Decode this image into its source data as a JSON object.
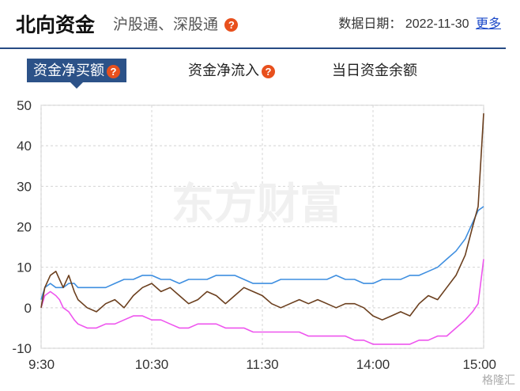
{
  "header": {
    "title": "北向资金",
    "subtitle": "沪股通、深股通",
    "date_label": "数据日期：",
    "date_value": "2022-11-30",
    "more_label": "更多"
  },
  "tabs": [
    {
      "label": "资金净买额",
      "active": true,
      "help": true
    },
    {
      "label": "资金净流入",
      "active": false,
      "help": true
    },
    {
      "label": "当日资金余额",
      "active": false,
      "help": false
    }
  ],
  "watermark": "东方财富",
  "corner_watermark": "格隆汇",
  "colors": {
    "accent": "#2c5288",
    "north_total": "#6b3f1e",
    "shanghai": "#3f8fe0",
    "shenzhen": "#ee55ee"
  },
  "chart_data": {
    "type": "line",
    "x_ticks": [
      "9:30",
      "10:30",
      "11:30",
      "14:00",
      "15:00"
    ],
    "ylim": [
      -10,
      50
    ],
    "y_ticks": [
      50,
      40,
      30,
      20,
      10,
      0,
      -10
    ],
    "grid": true,
    "x_minutes": [
      0,
      2,
      5,
      8,
      10,
      12,
      15,
      18,
      20,
      25,
      30,
      35,
      40,
      45,
      50,
      55,
      60,
      65,
      70,
      75,
      80,
      85,
      90,
      95,
      100,
      105,
      110,
      115,
      120,
      125,
      130,
      135,
      140,
      145,
      150,
      155,
      160,
      165,
      170,
      175,
      180,
      185,
      190,
      195,
      200,
      205,
      210,
      215,
      220,
      225,
      230,
      234,
      237,
      240
    ],
    "series": [
      {
        "values": [
          0,
          5,
          8,
          9,
          7,
          5,
          8,
          4,
          2,
          0,
          -1,
          1,
          2,
          0,
          3,
          5,
          6,
          4,
          5,
          3,
          1,
          2,
          4,
          3,
          1,
          3,
          5,
          4,
          3,
          1,
          0,
          1,
          2,
          1,
          2,
          1,
          0,
          1,
          1,
          0,
          -2,
          -3,
          -2,
          -1,
          -2,
          1,
          3,
          2,
          5,
          8,
          13,
          20,
          25,
          48
        ]
      },
      {
        "values": [
          2,
          5,
          6,
          5,
          5,
          5,
          6,
          6,
          5,
          5,
          5,
          5,
          6,
          7,
          7,
          8,
          8,
          7,
          7,
          6,
          7,
          7,
          7,
          8,
          8,
          8,
          7,
          6,
          6,
          6,
          7,
          7,
          7,
          7,
          7,
          7,
          8,
          7,
          7,
          6,
          6,
          7,
          7,
          7,
          8,
          8,
          9,
          10,
          12,
          14,
          17,
          21,
          24,
          25
        ]
      },
      {
        "values": [
          0,
          3,
          4,
          3,
          2,
          0,
          -1,
          -3,
          -4,
          -5,
          -5,
          -4,
          -4,
          -3,
          -2,
          -2,
          -3,
          -3,
          -4,
          -5,
          -5,
          -4,
          -4,
          -4,
          -5,
          -5,
          -5,
          -6,
          -6,
          -6,
          -6,
          -6,
          -6,
          -7,
          -7,
          -7,
          -7,
          -7,
          -8,
          -8,
          -9,
          -9,
          -9,
          -9,
          -9,
          -8,
          -8,
          -7,
          -7,
          -5,
          -3,
          -1,
          1,
          12
        ]
      }
    ]
  }
}
